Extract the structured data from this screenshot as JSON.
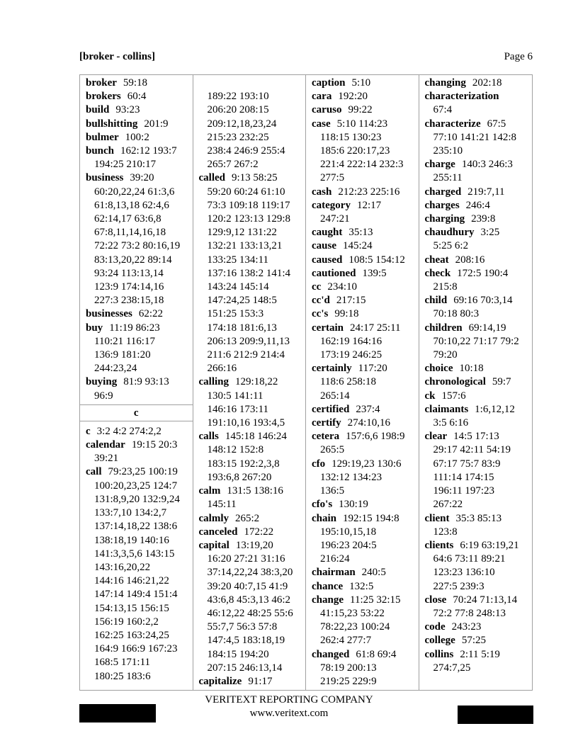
{
  "header": {
    "range": "[broker - collins]",
    "page": "Page 6"
  },
  "footer": {
    "company": "VERITEXT REPORTING COMPANY",
    "website": "www.veritext.com"
  },
  "columns": [
    [
      {
        "term": "broker",
        "refs": [
          "59:18"
        ]
      },
      {
        "term": "brokers",
        "refs": [
          "60:4"
        ]
      },
      {
        "term": "build",
        "refs": [
          "93:23"
        ]
      },
      {
        "term": "bullshitting",
        "refs": [
          "201:9"
        ]
      },
      {
        "term": "bulmer",
        "refs": [
          "100:2"
        ]
      },
      {
        "term": "bunch",
        "refs": [
          "162:12 193:7",
          "194:25 210:17"
        ]
      },
      {
        "term": "business",
        "refs": [
          "39:20",
          "60:20,22,24 61:3,6",
          "61:8,13,18 62:4,6",
          "62:14,17 63:6,8",
          "67:8,11,14,16,18",
          "72:22 73:2 80:16,19",
          "83:13,20,22 89:14",
          "93:24 113:13,14",
          "123:9 174:14,16",
          "227:3 238:15,18"
        ]
      },
      {
        "term": "businesses",
        "refs": [
          "62:22"
        ]
      },
      {
        "term": "buy",
        "refs": [
          "11:19 86:23",
          "110:21 116:17",
          "136:9 181:20",
          "244:23,24"
        ]
      },
      {
        "term": "buying",
        "refs": [
          "81:9 93:13",
          "96:9"
        ]
      },
      {
        "section": "c"
      },
      {
        "term": "c",
        "refs": [
          "3:2 4:2 274:2,2"
        ]
      },
      {
        "term": "calendar",
        "refs": [
          "19:15 20:3",
          "39:21"
        ]
      },
      {
        "term": "call",
        "refs": [
          "79:23,25 100:19",
          "100:20,23,25 124:7",
          "131:8,9,20 132:9,24",
          "133:7,10 134:2,7",
          "137:14,18,22 138:6",
          "138:18,19 140:16",
          "141:3,3,5,6 143:15",
          "143:16,20,22",
          "144:16 146:21,22",
          "147:14 149:4 151:4",
          "154:13,15 156:15",
          "156:19 160:2,2",
          "162:25 163:24,25",
          "164:9 166:9 167:23",
          "168:5 171:11",
          "180:25 183:6"
        ]
      }
    ],
    [
      {
        "term": "",
        "refs": [
          "",
          "189:22 193:10",
          "206:20 208:15",
          "209:12,18,23,24",
          "215:23 232:25",
          "238:4 246:9 255:4",
          "265:7 267:2"
        ]
      },
      {
        "term": "called",
        "refs": [
          "9:13 58:25",
          "59:20 60:24 61:10",
          "73:3 109:18 119:17",
          "120:2 123:13 129:8",
          "129:9,12 131:22",
          "132:21 133:13,21",
          "133:25 134:11",
          "137:16 138:2 141:4",
          "143:24 145:14",
          "147:24,25 148:5",
          "151:25 153:3",
          "174:18 181:6,13",
          "206:13 209:9,11,13",
          "211:6 212:9 214:4",
          "266:16"
        ]
      },
      {
        "term": "calling",
        "refs": [
          "129:18,22",
          "130:5 141:11",
          "146:16 173:11",
          "191:10,16 193:4,5"
        ]
      },
      {
        "term": "calls",
        "refs": [
          "145:18 146:24",
          "148:12 152:8",
          "183:15 192:2,3,8",
          "193:6,8 267:20"
        ]
      },
      {
        "term": "calm",
        "refs": [
          "131:5 138:16",
          "145:11"
        ]
      },
      {
        "term": "calmly",
        "refs": [
          "265:2"
        ]
      },
      {
        "term": "canceled",
        "refs": [
          "172:22"
        ]
      },
      {
        "term": "capital",
        "refs": [
          "13:19,20",
          "16:20 27:21 31:16",
          "37:14,22,24 38:3,20",
          "39:20 40:7,15 41:9",
          "43:6,8 45:3,13 46:2",
          "46:12,22 48:25 55:6",
          "55:7,7 56:3 57:8",
          "147:4,5 183:18,19",
          "184:15 194:20",
          "207:15 246:13,14"
        ]
      },
      {
        "term": "capitalize",
        "refs": [
          "91:17"
        ]
      }
    ],
    [
      {
        "term": "caption",
        "refs": [
          "5:10"
        ]
      },
      {
        "term": "cara",
        "refs": [
          "192:20"
        ]
      },
      {
        "term": "caruso",
        "refs": [
          "99:22"
        ]
      },
      {
        "term": "case",
        "refs": [
          "5:10 114:23",
          "118:15 130:23",
          "185:6 220:17,23",
          "221:4 222:14 232:3",
          "277:5"
        ]
      },
      {
        "term": "cash",
        "refs": [
          "212:23 225:16"
        ]
      },
      {
        "term": "category",
        "refs": [
          "12:17",
          "247:21"
        ]
      },
      {
        "term": "caught",
        "refs": [
          "35:13"
        ]
      },
      {
        "term": "cause",
        "refs": [
          "145:24"
        ]
      },
      {
        "term": "caused",
        "refs": [
          "108:5 154:12"
        ]
      },
      {
        "term": "cautioned",
        "refs": [
          "139:5"
        ]
      },
      {
        "term": "cc",
        "refs": [
          "234:10"
        ]
      },
      {
        "term": "cc'd",
        "refs": [
          "217:15"
        ]
      },
      {
        "term": "cc's",
        "refs": [
          "99:18"
        ]
      },
      {
        "term": "certain",
        "refs": [
          "24:17 25:11",
          "162:19 164:16",
          "173:19 246:25"
        ]
      },
      {
        "term": "certainly",
        "refs": [
          "117:20",
          "118:6 258:18",
          "265:14"
        ]
      },
      {
        "term": "certified",
        "refs": [
          "237:4"
        ]
      },
      {
        "term": "certify",
        "refs": [
          "274:10,16"
        ]
      },
      {
        "term": "cetera",
        "refs": [
          "157:6,6 198:9",
          "265:5"
        ]
      },
      {
        "term": "cfo",
        "refs": [
          "129:19,23 130:6",
          "132:12 134:23",
          "136:5"
        ]
      },
      {
        "term": "cfo's",
        "refs": [
          "130:19"
        ]
      },
      {
        "term": "chain",
        "refs": [
          "192:15 194:8",
          "195:10,15,18",
          "196:23 204:5",
          "216:24"
        ]
      },
      {
        "term": "chairman",
        "refs": [
          "240:5"
        ]
      },
      {
        "term": "chance",
        "refs": [
          "132:5"
        ]
      },
      {
        "term": "change",
        "refs": [
          "11:25 32:15",
          "41:15,23 53:22",
          "78:22,23 100:24",
          "262:4 277:7"
        ]
      },
      {
        "term": "changed",
        "refs": [
          "61:8 69:4",
          "78:19 200:13",
          "219:25 229:9"
        ]
      }
    ],
    [
      {
        "term": "changing",
        "refs": [
          "202:18"
        ]
      },
      {
        "term": "characterization",
        "refs": [
          "",
          "67:4"
        ]
      },
      {
        "term": "characterize",
        "refs": [
          "67:5",
          "77:10 141:21 142:8",
          "235:10"
        ]
      },
      {
        "term": "charge",
        "refs": [
          "140:3 246:3",
          "255:11"
        ]
      },
      {
        "term": "charged",
        "refs": [
          "219:7,11"
        ]
      },
      {
        "term": "charges",
        "refs": [
          "246:4"
        ]
      },
      {
        "term": "charging",
        "refs": [
          "239:8"
        ]
      },
      {
        "term": "chaudhury",
        "refs": [
          "3:25",
          "5:25 6:2"
        ]
      },
      {
        "term": "cheat",
        "refs": [
          "208:16"
        ]
      },
      {
        "term": "check",
        "refs": [
          "172:5 190:4",
          "215:8"
        ]
      },
      {
        "term": "child",
        "refs": [
          "69:16 70:3,14",
          "70:18 80:3"
        ]
      },
      {
        "term": "children",
        "refs": [
          "69:14,19",
          "70:10,22 71:17 79:2",
          "79:20"
        ]
      },
      {
        "term": "choice",
        "refs": [
          "10:18"
        ]
      },
      {
        "term": "chronological",
        "refs": [
          "59:7"
        ]
      },
      {
        "term": "ck",
        "refs": [
          "157:6"
        ]
      },
      {
        "term": "claimants",
        "refs": [
          "1:6,12,12",
          "3:5 6:16"
        ]
      },
      {
        "term": "clear",
        "refs": [
          "14:5 17:13",
          "29:17 42:11 54:19",
          "67:17 75:7 83:9",
          "111:14 174:15",
          "196:11 197:23",
          "267:22"
        ]
      },
      {
        "term": "client",
        "refs": [
          "35:3 85:13",
          "123:8"
        ]
      },
      {
        "term": "clients",
        "refs": [
          "6:19 63:19,21",
          "64:6 73:11 89:21",
          "123:23 136:10",
          "227:5 239:3"
        ]
      },
      {
        "term": "close",
        "refs": [
          "70:24 71:13,14",
          "72:2 77:8 248:13"
        ]
      },
      {
        "term": "code",
        "refs": [
          "243:23"
        ]
      },
      {
        "term": "college",
        "refs": [
          "57:25"
        ]
      },
      {
        "term": "collins",
        "refs": [
          "2:11 5:19",
          "274:7,25"
        ]
      }
    ]
  ]
}
